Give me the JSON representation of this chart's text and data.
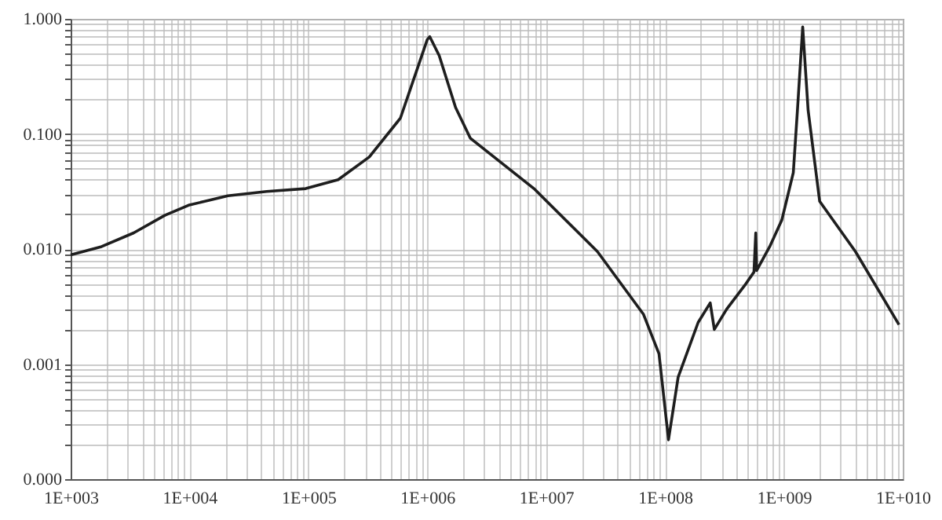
{
  "chart_data": {
    "type": "line",
    "log": "xy",
    "grid": true,
    "x": [
      1000,
      1820,
      3390,
      6200,
      9800,
      21000,
      44600,
      95000,
      178000,
      325000,
      594000,
      810000,
      1000000,
      1050000,
      1260000,
      1730000,
      2300000,
      7900000,
      27000000,
      66000000,
      89000000,
      107000000,
      129000000,
      190000000,
      240000000,
      260000000,
      330000000,
      480000000,
      560000000,
      580000000,
      590000000,
      760000000,
      960000000,
      1200000000,
      1300000000,
      1440000000,
      1600000000,
      2000000000,
      4000000000,
      9300000000
    ],
    "series": [
      {
        "color": "#1e1e1e",
        "values": [
          0.0089,
          0.0105,
          0.0138,
          0.0196,
          0.024,
          0.029,
          0.0316,
          0.0335,
          0.04,
          0.063,
          0.137,
          0.35,
          0.66,
          0.7,
          0.48,
          0.17,
          0.092,
          0.0335,
          0.0095,
          0.0027,
          0.00123,
          0.00022,
          0.00077,
          0.0023,
          0.0034,
          0.002,
          0.003,
          0.005,
          0.0063,
          0.0138,
          0.0065,
          0.0105,
          0.0178,
          0.046,
          0.16,
          0.85,
          0.16,
          0.026,
          0.0095,
          0.0022
        ]
      }
    ],
    "xlim": [
      1000,
      10000000000
    ],
    "ylim": [
      0.0001,
      1
    ],
    "xticks": [
      {
        "value": 1000,
        "label": "1E+003"
      },
      {
        "value": 2000,
        "label": null
      },
      {
        "value": 3000,
        "label": null
      },
      {
        "value": 4000,
        "label": null
      },
      {
        "value": 5000,
        "label": null
      },
      {
        "value": 6000,
        "label": null
      },
      {
        "value": 7000,
        "label": null
      },
      {
        "value": 8000,
        "label": null
      },
      {
        "value": 9000,
        "label": null
      },
      {
        "value": 10000,
        "label": "1E+004"
      },
      {
        "value": 20000,
        "label": null
      },
      {
        "value": 30000,
        "label": null
      },
      {
        "value": 40000,
        "label": null
      },
      {
        "value": 50000,
        "label": null
      },
      {
        "value": 60000,
        "label": null
      },
      {
        "value": 70000,
        "label": null
      },
      {
        "value": 80000,
        "label": null
      },
      {
        "value": 90000,
        "label": null
      },
      {
        "value": 100000,
        "label": "1E+005"
      },
      {
        "value": 200000,
        "label": null
      },
      {
        "value": 300000,
        "label": null
      },
      {
        "value": 400000,
        "label": null
      },
      {
        "value": 500000,
        "label": null
      },
      {
        "value": 600000,
        "label": null
      },
      {
        "value": 700000,
        "label": null
      },
      {
        "value": 800000,
        "label": null
      },
      {
        "value": 900000,
        "label": null
      },
      {
        "value": 1000000,
        "label": "1E+006"
      },
      {
        "value": 2000000,
        "label": null
      },
      {
        "value": 3000000,
        "label": null
      },
      {
        "value": 4000000,
        "label": null
      },
      {
        "value": 5000000,
        "label": null
      },
      {
        "value": 6000000,
        "label": null
      },
      {
        "value": 7000000,
        "label": null
      },
      {
        "value": 8000000,
        "label": null
      },
      {
        "value": 9000000,
        "label": null
      },
      {
        "value": 10000000,
        "label": "1E+007"
      },
      {
        "value": 20000000,
        "label": null
      },
      {
        "value": 30000000,
        "label": null
      },
      {
        "value": 40000000,
        "label": null
      },
      {
        "value": 50000000,
        "label": null
      },
      {
        "value": 60000000,
        "label": null
      },
      {
        "value": 70000000,
        "label": null
      },
      {
        "value": 80000000,
        "label": null
      },
      {
        "value": 90000000,
        "label": null
      },
      {
        "value": 100000000,
        "label": "1E+008"
      },
      {
        "value": 200000000,
        "label": null
      },
      {
        "value": 300000000,
        "label": null
      },
      {
        "value": 400000000,
        "label": null
      },
      {
        "value": 500000000,
        "label": null
      },
      {
        "value": 600000000,
        "label": null
      },
      {
        "value": 700000000,
        "label": null
      },
      {
        "value": 800000000,
        "label": null
      },
      {
        "value": 900000000,
        "label": null
      },
      {
        "value": 1000000000,
        "label": "1E+009"
      },
      {
        "value": 2000000000,
        "label": null
      },
      {
        "value": 3000000000,
        "label": null
      },
      {
        "value": 4000000000,
        "label": null
      },
      {
        "value": 5000000000,
        "label": null
      },
      {
        "value": 6000000000,
        "label": null
      },
      {
        "value": 7000000000,
        "label": null
      },
      {
        "value": 8000000000,
        "label": null
      },
      {
        "value": 9000000000,
        "label": null
      },
      {
        "value": 10000000000,
        "label": "1E+010"
      }
    ],
    "yticks": [
      {
        "value": 0.0001,
        "label": "0.000"
      },
      {
        "value": 0.0002,
        "label": null
      },
      {
        "value": 0.0003,
        "label": null
      },
      {
        "value": 0.0004,
        "label": null
      },
      {
        "value": 0.0005,
        "label": null
      },
      {
        "value": 0.0006,
        "label": null
      },
      {
        "value": 0.0007,
        "label": null
      },
      {
        "value": 0.0008,
        "label": null
      },
      {
        "value": 0.0009,
        "label": null
      },
      {
        "value": 0.001,
        "label": "0.001"
      },
      {
        "value": 0.002,
        "label": null
      },
      {
        "value": 0.003,
        "label": null
      },
      {
        "value": 0.004,
        "label": null
      },
      {
        "value": 0.005,
        "label": null
      },
      {
        "value": 0.006,
        "label": null
      },
      {
        "value": 0.007,
        "label": null
      },
      {
        "value": 0.008,
        "label": null
      },
      {
        "value": 0.009,
        "label": null
      },
      {
        "value": 0.01,
        "label": "0.010"
      },
      {
        "value": 0.02,
        "label": null
      },
      {
        "value": 0.03,
        "label": null
      },
      {
        "value": 0.04,
        "label": null
      },
      {
        "value": 0.05,
        "label": null
      },
      {
        "value": 0.06,
        "label": null
      },
      {
        "value": 0.07,
        "label": null
      },
      {
        "value": 0.08,
        "label": null
      },
      {
        "value": 0.09,
        "label": null
      },
      {
        "value": 0.1,
        "label": "0.100"
      },
      {
        "value": 0.2,
        "label": null
      },
      {
        "value": 0.3,
        "label": null
      },
      {
        "value": 0.4,
        "label": null
      },
      {
        "value": 0.5,
        "label": null
      },
      {
        "value": 0.6,
        "label": null
      },
      {
        "value": 0.7,
        "label": null
      },
      {
        "value": 0.8,
        "label": null
      },
      {
        "value": 0.9,
        "label": null
      },
      {
        "value": 1,
        "label": "1.000"
      }
    ]
  }
}
